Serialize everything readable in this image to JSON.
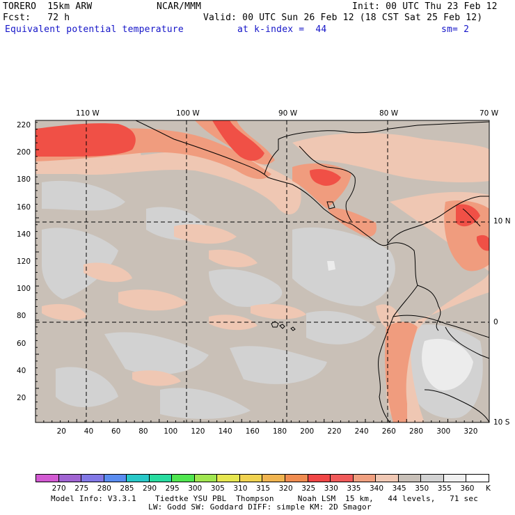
{
  "header": {
    "model_name": "TORERO  15km ARW",
    "center": "NCAR/MMM",
    "init": "Init: 00 UTC Thu 23 Feb 12",
    "fcst": "Fcst:   72 h",
    "valid": "Valid: 00 UTC Sun 26 Feb 12 (18 CST Sat 25 Feb 12)",
    "field": "Equivalent potential temperature",
    "level": "at k-index =  44",
    "smoothing": "sm= 2"
  },
  "map": {
    "lon_labels": [
      "110 W",
      "100 W",
      "90 W",
      "80 W",
      "70 W"
    ],
    "lat_labels": [
      "10 N",
      "0",
      "10 S"
    ],
    "y_ticks": [
      "220",
      "200",
      "180",
      "160",
      "140",
      "120",
      "100",
      "80",
      "60",
      "40",
      "20"
    ],
    "x_ticks": [
      "20",
      "40",
      "60",
      "80",
      "100",
      "120",
      "140",
      "160",
      "180",
      "200",
      "220",
      "240",
      "260",
      "280",
      "300",
      "320"
    ]
  },
  "colorbar": {
    "labels": [
      "270",
      "275",
      "280",
      "285",
      "290",
      "295",
      "300",
      "305",
      "310",
      "315",
      "320",
      "325",
      "330",
      "335",
      "340",
      "345",
      "350",
      "355",
      "360"
    ],
    "unit": "K",
    "colors": [
      "#d25ad2",
      "#a064d2",
      "#8278e6",
      "#5a8cf0",
      "#28c8c8",
      "#28dca0",
      "#50e650",
      "#a0e650",
      "#e6e650",
      "#f0d250",
      "#f0b450",
      "#f08c50",
      "#f04646",
      "#f05a5a",
      "#f0a080",
      "#f0c8b4",
      "#c8c0b8",
      "#d2d2d2",
      "#f0f0f0",
      "#ffffff"
    ]
  },
  "footer": {
    "line1": "Model Info: V3.3.1    Tiedtke YSU PBL  Thompson     Noah LSM  15 km,   44 levels,   71 sec",
    "line2": "LW: Godd SW: Goddard DIFF: simple KM: 2D Smagor"
  }
}
